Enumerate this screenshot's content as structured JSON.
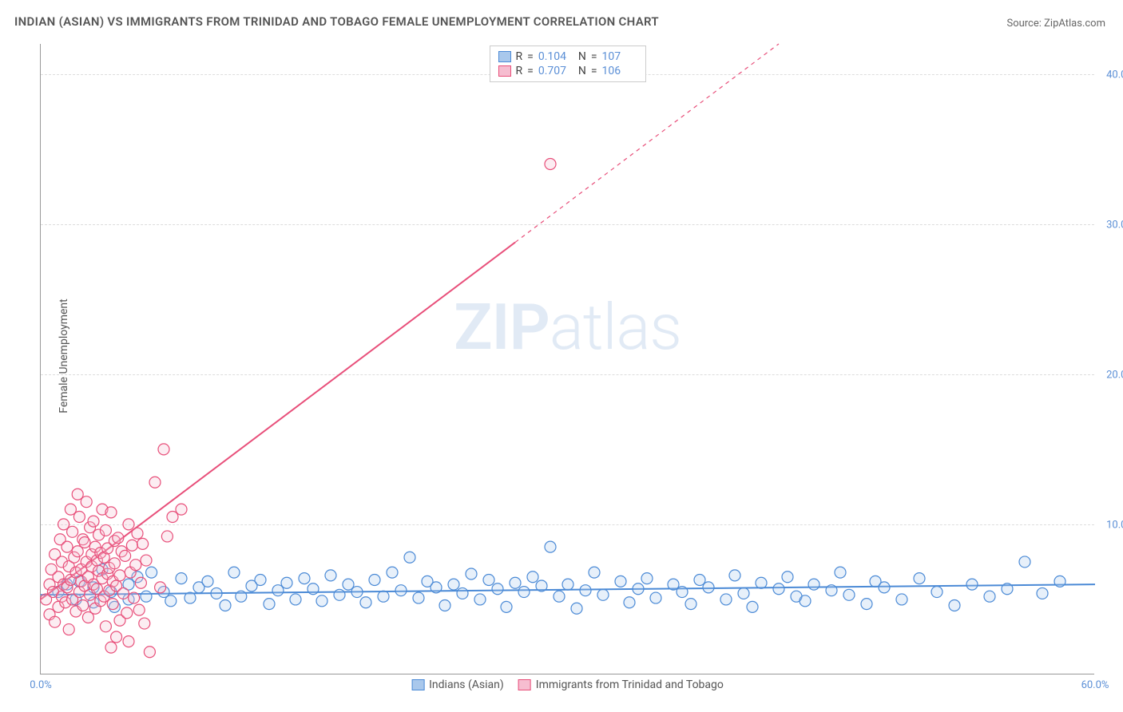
{
  "title": "INDIAN (ASIAN) VS IMMIGRANTS FROM TRINIDAD AND TOBAGO FEMALE UNEMPLOYMENT CORRELATION CHART",
  "source": "Source: ZipAtlas.com",
  "y_axis_label": "Female Unemployment",
  "watermark_zip": "ZIP",
  "watermark_atlas": "atlas",
  "chart": {
    "type": "scatter",
    "xlim": [
      0,
      60
    ],
    "ylim": [
      0,
      42
    ],
    "x_ticks": [
      {
        "v": 0,
        "l": "0.0%"
      },
      {
        "v": 60,
        "l": "60.0%"
      }
    ],
    "y_ticks": [
      {
        "v": 10,
        "l": "10.0%"
      },
      {
        "v": 20,
        "l": "20.0%"
      },
      {
        "v": 30,
        "l": "30.0%"
      },
      {
        "v": 40,
        "l": "40.0%"
      }
    ],
    "grid_color": "#dddddd",
    "axis_color": "#999999",
    "bg": "#ffffff",
    "marker_radius": 7,
    "marker_stroke_width": 1.2,
    "marker_fill_opacity": 0.28,
    "line_width": 2,
    "series": [
      {
        "name": "Indians (Asian)",
        "color_stroke": "#4b8ad6",
        "color_fill": "#a9c8ec",
        "R": "0.104",
        "N": "107",
        "trend": {
          "x1": 0,
          "y1": 5.3,
          "x2": 60,
          "y2": 6.0,
          "dash_from_x": 60
        },
        "points": [
          [
            1,
            5.5
          ],
          [
            1.5,
            6
          ],
          [
            2,
            5
          ],
          [
            2.2,
            6.2
          ],
          [
            3,
            5.8
          ],
          [
            3,
            4.8
          ],
          [
            3.5,
            7
          ],
          [
            4,
            5.5
          ],
          [
            4.2,
            4.5
          ],
          [
            5,
            6
          ],
          [
            5,
            5
          ],
          [
            5.5,
            6.5
          ],
          [
            6,
            5.2
          ],
          [
            6.3,
            6.8
          ],
          [
            7,
            5.5
          ],
          [
            7.4,
            4.9
          ],
          [
            8,
            6.4
          ],
          [
            8.5,
            5.1
          ],
          [
            9,
            5.8
          ],
          [
            9.5,
            6.2
          ],
          [
            10,
            5.4
          ],
          [
            10.5,
            4.6
          ],
          [
            11,
            6.8
          ],
          [
            11.4,
            5.2
          ],
          [
            12,
            5.9
          ],
          [
            12.5,
            6.3
          ],
          [
            13,
            4.7
          ],
          [
            13.5,
            5.6
          ],
          [
            14,
            6.1
          ],
          [
            14.5,
            5.0
          ],
          [
            15,
            6.4
          ],
          [
            15.5,
            5.7
          ],
          [
            16,
            4.9
          ],
          [
            16.5,
            6.6
          ],
          [
            17,
            5.3
          ],
          [
            17.5,
            6.0
          ],
          [
            18,
            5.5
          ],
          [
            18.5,
            4.8
          ],
          [
            19,
            6.3
          ],
          [
            19.5,
            5.2
          ],
          [
            20,
            6.8
          ],
          [
            20.5,
            5.6
          ],
          [
            21,
            7.8
          ],
          [
            21.5,
            5.1
          ],
          [
            22,
            6.2
          ],
          [
            22.5,
            5.8
          ],
          [
            23,
            4.6
          ],
          [
            23.5,
            6.0
          ],
          [
            24,
            5.4
          ],
          [
            24.5,
            6.7
          ],
          [
            25,
            5.0
          ],
          [
            25.5,
            6.3
          ],
          [
            26,
            5.7
          ],
          [
            26.5,
            4.5
          ],
          [
            27,
            6.1
          ],
          [
            27.5,
            5.5
          ],
          [
            28,
            6.5
          ],
          [
            28.5,
            5.9
          ],
          [
            29,
            8.5
          ],
          [
            29.5,
            5.2
          ],
          [
            30,
            6.0
          ],
          [
            30.5,
            4.4
          ],
          [
            31,
            5.6
          ],
          [
            31.5,
            6.8
          ],
          [
            32,
            5.3
          ],
          [
            33,
            6.2
          ],
          [
            33.5,
            4.8
          ],
          [
            34,
            5.7
          ],
          [
            34.5,
            6.4
          ],
          [
            35,
            5.1
          ],
          [
            36,
            6.0
          ],
          [
            36.5,
            5.5
          ],
          [
            37,
            4.7
          ],
          [
            37.5,
            6.3
          ],
          [
            38,
            5.8
          ],
          [
            39,
            5.0
          ],
          [
            39.5,
            6.6
          ],
          [
            40,
            5.4
          ],
          [
            40.5,
            4.5
          ],
          [
            41,
            6.1
          ],
          [
            42,
            5.7
          ],
          [
            42.5,
            6.5
          ],
          [
            43,
            5.2
          ],
          [
            43.5,
            4.9
          ],
          [
            44,
            6.0
          ],
          [
            45,
            5.6
          ],
          [
            45.5,
            6.8
          ],
          [
            46,
            5.3
          ],
          [
            47,
            4.7
          ],
          [
            47.5,
            6.2
          ],
          [
            48,
            5.8
          ],
          [
            49,
            5.0
          ],
          [
            50,
            6.4
          ],
          [
            51,
            5.5
          ],
          [
            52,
            4.6
          ],
          [
            53,
            6.0
          ],
          [
            54,
            5.2
          ],
          [
            55,
            5.7
          ],
          [
            56,
            7.5
          ],
          [
            57,
            5.4
          ],
          [
            58,
            6.2
          ]
        ]
      },
      {
        "name": "Immigrants from Trinidad and Tobago",
        "color_stroke": "#e84f7a",
        "color_fill": "#f6bdd0",
        "R": "0.707",
        "N": "106",
        "trend": {
          "x1": 0,
          "y1": 5,
          "x2": 42,
          "y2": 42,
          "dash_from_x": 27
        },
        "points": [
          [
            0.3,
            5
          ],
          [
            0.5,
            6
          ],
          [
            0.5,
            4
          ],
          [
            0.6,
            7
          ],
          [
            0.7,
            5.5
          ],
          [
            0.8,
            8
          ],
          [
            0.8,
            3.5
          ],
          [
            1,
            6.5
          ],
          [
            1,
            4.5
          ],
          [
            1.1,
            9
          ],
          [
            1.2,
            5.2
          ],
          [
            1.2,
            7.5
          ],
          [
            1.3,
            6
          ],
          [
            1.3,
            10
          ],
          [
            1.4,
            4.8
          ],
          [
            1.5,
            8.5
          ],
          [
            1.5,
            5.8
          ],
          [
            1.6,
            3
          ],
          [
            1.6,
            7.2
          ],
          [
            1.7,
            11
          ],
          [
            1.7,
            6.3
          ],
          [
            1.8,
            9.5
          ],
          [
            1.8,
            5
          ],
          [
            1.9,
            7.8
          ],
          [
            2,
            6.8
          ],
          [
            2,
            4.2
          ],
          [
            2.1,
            8.2
          ],
          [
            2.1,
            12
          ],
          [
            2.2,
            5.5
          ],
          [
            2.2,
            10.5
          ],
          [
            2.3,
            7
          ],
          [
            2.3,
            6.2
          ],
          [
            2.4,
            9
          ],
          [
            2.4,
            4.6
          ],
          [
            2.5,
            8.8
          ],
          [
            2.5,
            5.9
          ],
          [
            2.6,
            7.5
          ],
          [
            2.6,
            11.5
          ],
          [
            2.7,
            6.5
          ],
          [
            2.7,
            3.8
          ],
          [
            2.8,
            9.8
          ],
          [
            2.8,
            5.3
          ],
          [
            2.9,
            8
          ],
          [
            2.9,
            7.2
          ],
          [
            3,
            6
          ],
          [
            3,
            10.2
          ],
          [
            3.1,
            4.4
          ],
          [
            3.1,
            8.5
          ],
          [
            3.2,
            7.6
          ],
          [
            3.2,
            5.7
          ],
          [
            3.3,
            9.3
          ],
          [
            3.3,
            6.9
          ],
          [
            3.4,
            4.9
          ],
          [
            3.4,
            8.1
          ],
          [
            3.5,
            11
          ],
          [
            3.5,
            6.4
          ],
          [
            3.6,
            7.8
          ],
          [
            3.6,
            5.2
          ],
          [
            3.7,
            3.2
          ],
          [
            3.7,
            9.6
          ],
          [
            3.8,
            6.7
          ],
          [
            3.8,
            8.4
          ],
          [
            3.9,
            5.6
          ],
          [
            3.9,
            7.1
          ],
          [
            4,
            10.8
          ],
          [
            4,
            1.8
          ],
          [
            4.1,
            6.2
          ],
          [
            4.1,
            4.7
          ],
          [
            4.2,
            8.9
          ],
          [
            4.2,
            7.4
          ],
          [
            4.3,
            5.9
          ],
          [
            4.3,
            2.5
          ],
          [
            4.4,
            9.1
          ],
          [
            4.5,
            6.6
          ],
          [
            4.5,
            3.6
          ],
          [
            4.6,
            8.2
          ],
          [
            4.7,
            5.4
          ],
          [
            4.8,
            7.9
          ],
          [
            4.9,
            4.1
          ],
          [
            5,
            2.2
          ],
          [
            5,
            10
          ],
          [
            5.1,
            6.8
          ],
          [
            5.2,
            8.6
          ],
          [
            5.3,
            5.1
          ],
          [
            5.4,
            7.3
          ],
          [
            5.5,
            9.4
          ],
          [
            5.6,
            4.3
          ],
          [
            5.7,
            6.1
          ],
          [
            5.8,
            8.7
          ],
          [
            5.9,
            3.4
          ],
          [
            6,
            7.6
          ],
          [
            6.2,
            1.5
          ],
          [
            6.5,
            12.8
          ],
          [
            6.8,
            5.8
          ],
          [
            7,
            15
          ],
          [
            7.2,
            9.2
          ],
          [
            7.5,
            10.5
          ],
          [
            8,
            11
          ],
          [
            29,
            34
          ]
        ]
      }
    ]
  },
  "stats_legend_labels": {
    "R": "R",
    "eq": "=",
    "N": "N"
  },
  "series_legend": [
    "Indians (Asian)",
    "Immigrants from Trinidad and Tobago"
  ]
}
